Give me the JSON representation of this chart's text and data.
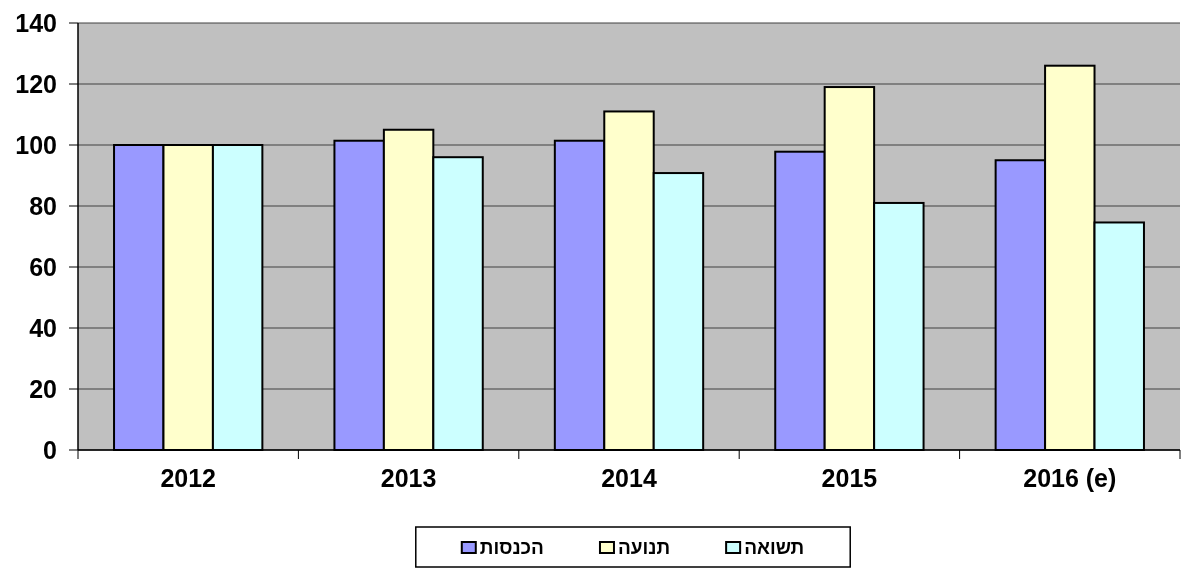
{
  "chart_data": {
    "type": "bar",
    "categories": [
      "2012",
      "2013",
      "2014",
      "2015",
      "2016 (e)"
    ],
    "series": [
      {
        "name": "הכנסות",
        "color": "#9999ff",
        "values": [
          100,
          101.4,
          101.4,
          97.8,
          95
        ]
      },
      {
        "name": "תנועה",
        "color": "#ffffcc",
        "values": [
          100,
          105,
          111,
          119,
          126
        ]
      },
      {
        "name": "תשואה",
        "color": "#ccffff",
        "values": [
          100,
          96,
          90.8,
          81,
          74.6
        ]
      }
    ],
    "ylim": [
      0,
      140
    ],
    "yticks": [
      0,
      20,
      40,
      60,
      80,
      100,
      120,
      140
    ],
    "grid": "y",
    "legend": "bottom"
  }
}
